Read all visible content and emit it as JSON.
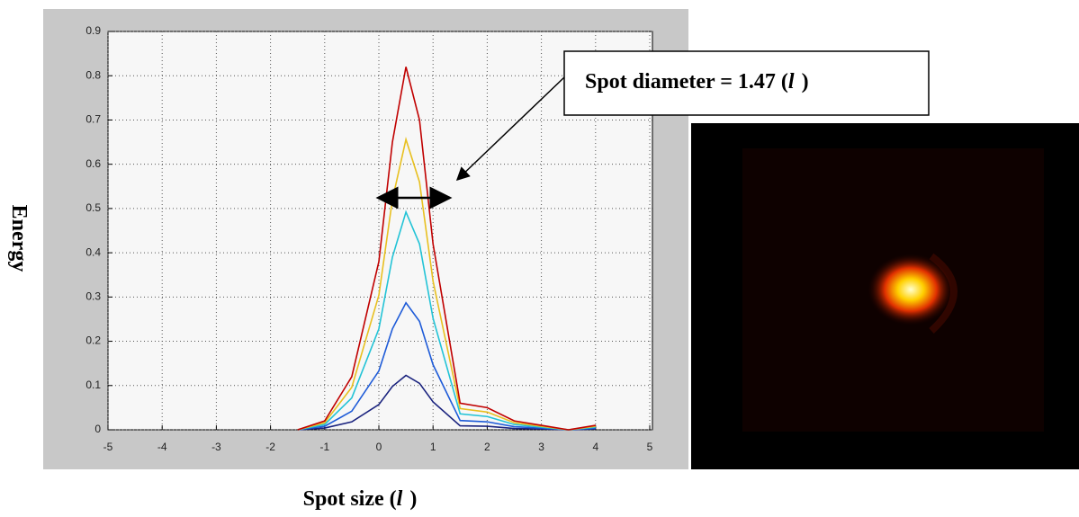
{
  "chart_data": {
    "type": "line",
    "x_label": [
      "Spot size (",
      "l",
      ")"
    ],
    "y_label": "Energy",
    "annotation": [
      "Spot diameter = 1.47 (",
      "l",
      ")"
    ],
    "x": [
      -1.5,
      -1,
      -0.5,
      0,
      0.25,
      0.5,
      0.75,
      1,
      1.5,
      2,
      2.5,
      3,
      3.5,
      4
    ],
    "series": [
      {
        "color": "#1a237e",
        "values": [
          0,
          0.004,
          0.018,
          0.057,
          0.098,
          0.123,
          0.105,
          0.063,
          0.009,
          0.008,
          0.003,
          0.002,
          0,
          0.002
        ]
      },
      {
        "color": "#1e5bd8",
        "values": [
          0,
          0.008,
          0.042,
          0.133,
          0.228,
          0.287,
          0.245,
          0.147,
          0.021,
          0.018,
          0.007,
          0.004,
          0,
          0.004
        ]
      },
      {
        "color": "#22c3d6",
        "values": [
          0,
          0.012,
          0.072,
          0.228,
          0.39,
          0.492,
          0.42,
          0.252,
          0.036,
          0.03,
          0.012,
          0.006,
          0,
          0.006
        ]
      },
      {
        "color": "#e8c020",
        "values": [
          0,
          0.016,
          0.096,
          0.304,
          0.52,
          0.656,
          0.56,
          0.336,
          0.048,
          0.04,
          0.016,
          0.008,
          0,
          0.008
        ]
      },
      {
        "color": "#c00000",
        "values": [
          0,
          0.02,
          0.12,
          0.38,
          0.65,
          0.82,
          0.7,
          0.42,
          0.06,
          0.05,
          0.02,
          0.01,
          0,
          0.01
        ]
      }
    ],
    "xlim": [
      -5,
      5
    ],
    "xticks": [
      -5,
      -4,
      -3,
      -2,
      -1,
      0,
      1,
      2,
      3,
      4,
      5
    ],
    "ylim": [
      0,
      0.9
    ],
    "yticks": [
      0,
      0.1,
      0.2,
      0.3,
      0.4,
      0.5,
      0.6,
      0.7,
      0.8,
      0.9
    ],
    "grid": true
  }
}
